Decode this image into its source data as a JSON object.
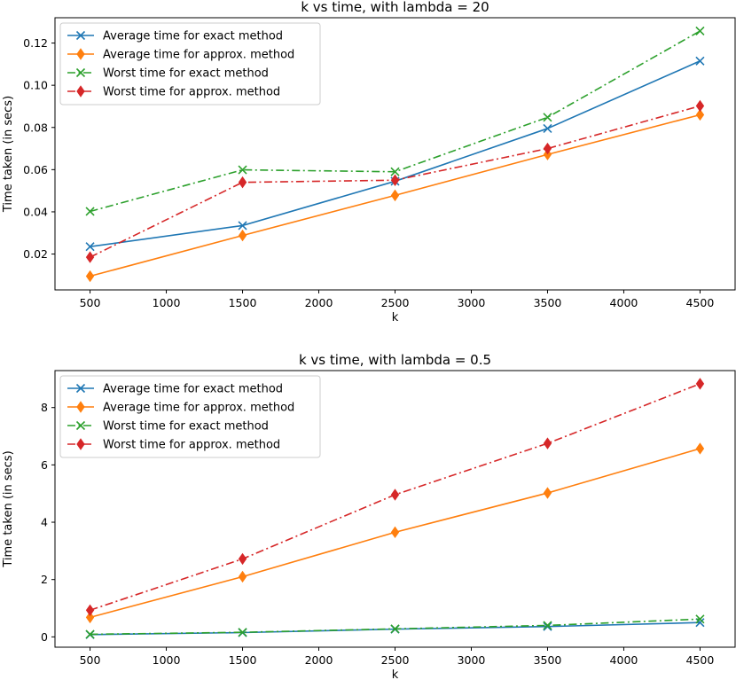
{
  "chart_data": [
    {
      "type": "line",
      "title": "k vs time, with lambda = 20",
      "xlabel": "k",
      "ylabel": "Time taken (in secs)",
      "x": [
        500,
        1500,
        2500,
        3500,
        4500
      ],
      "xlim": [
        270,
        4730
      ],
      "ylim": [
        0.003,
        0.132
      ],
      "xticks": [
        500,
        1000,
        1500,
        2000,
        2500,
        3000,
        3500,
        4000,
        4500
      ],
      "yticks": [
        0.02,
        0.04,
        0.06,
        0.08,
        0.1,
        0.12
      ],
      "ytick_labels": [
        "0.02",
        "0.04",
        "0.06",
        "0.08",
        "0.10",
        "0.12"
      ],
      "grid": false,
      "legend_position": "upper-left",
      "series": [
        {
          "name": "Average time for exact method",
          "values": [
            0.0235,
            0.0335,
            0.0545,
            0.0795,
            0.1115
          ],
          "color": "#1f77b4",
          "linestyle": "solid",
          "marker": "x"
        },
        {
          "name": "Average time for approx. method",
          "values": [
            0.0095,
            0.0288,
            0.0478,
            0.0672,
            0.086
          ],
          "color": "#ff7f0e",
          "linestyle": "solid",
          "marker": "diamond"
        },
        {
          "name": "Worst time for exact method",
          "values": [
            0.0402,
            0.0599,
            0.059,
            0.0848,
            0.1257
          ],
          "color": "#2ca02c",
          "linestyle": "dashdot",
          "marker": "x"
        },
        {
          "name": "Worst time for approx. method",
          "values": [
            0.0185,
            0.054,
            0.055,
            0.07,
            0.0902
          ],
          "color": "#d62728",
          "linestyle": "dashdot",
          "marker": "diamond"
        }
      ]
    },
    {
      "type": "line",
      "title": "k vs time, with lambda = 0.5",
      "xlabel": "k",
      "ylabel": "Time taken (in secs)",
      "x": [
        500,
        1500,
        2500,
        3500,
        4500
      ],
      "xlim": [
        270,
        4730
      ],
      "ylim": [
        -0.36,
        9.29
      ],
      "xticks": [
        500,
        1000,
        1500,
        2000,
        2500,
        3000,
        3500,
        4000,
        4500
      ],
      "yticks": [
        0,
        2,
        4,
        6,
        8
      ],
      "ytick_labels": [
        "0",
        "2",
        "4",
        "6",
        "8"
      ],
      "grid": false,
      "legend_position": "upper-left",
      "series": [
        {
          "name": "Average time for exact method",
          "values": [
            0.08,
            0.15,
            0.27,
            0.36,
            0.5
          ],
          "color": "#1f77b4",
          "linestyle": "solid",
          "marker": "x"
        },
        {
          "name": "Average time for approx. method",
          "values": [
            0.68,
            2.1,
            3.65,
            5.02,
            6.57
          ],
          "color": "#ff7f0e",
          "linestyle": "solid",
          "marker": "diamond"
        },
        {
          "name": "Worst time for exact method",
          "values": [
            0.09,
            0.16,
            0.28,
            0.4,
            0.62
          ],
          "color": "#2ca02c",
          "linestyle": "dashdot",
          "marker": "x"
        },
        {
          "name": "Worst time for approx. method",
          "values": [
            0.93,
            2.72,
            4.96,
            6.75,
            8.83
          ],
          "color": "#d62728",
          "linestyle": "dashdot",
          "marker": "diamond"
        }
      ]
    }
  ]
}
